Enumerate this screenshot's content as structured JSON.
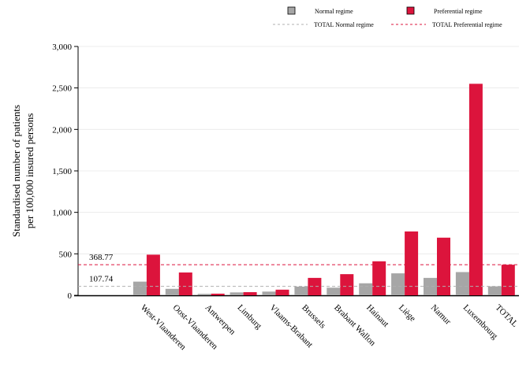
{
  "chart_data": {
    "type": "bar",
    "title": "",
    "xlabel": "",
    "ylabel_lines": [
      "Standardised number of patients",
      "per 100,000 insured persons"
    ],
    "categories": [
      "West-Vlaanderen",
      "Oost-Vlaanderen",
      "Antwerpen",
      "Limburg",
      "Vlaams-Brabant",
      "Brussels",
      "Brabant Wallon",
      "Hainaut",
      "Liège",
      "Namur",
      "Luxembourg",
      "TOTAL"
    ],
    "series": [
      {
        "name": "Normal regime",
        "color": "#a6a6a6",
        "values": [
          165,
          78,
          18,
          35,
          45,
          105,
          92,
          145,
          265,
          210,
          280,
          108
        ]
      },
      {
        "name": "Preferential regime",
        "color": "#dc143c",
        "values": [
          490,
          275,
          20,
          38,
          68,
          210,
          255,
          410,
          770,
          695,
          2550,
          369
        ]
      }
    ],
    "reference_lines": [
      {
        "name": "TOTAL Normal regime",
        "value": 107.74,
        "label": "107.74",
        "color": "#b0b0b0"
      },
      {
        "name": "TOTAL Preferential regime",
        "value": 368.77,
        "label": "368.77",
        "color": "#dc143c"
      }
    ],
    "ylim": [
      0,
      3000
    ],
    "yticks": [
      0,
      500,
      1000,
      1500,
      2000,
      2500,
      3000
    ],
    "ytick_labels": [
      "0",
      "500",
      "1,000",
      "1,500",
      "2,000",
      "2,500",
      "3,000"
    ],
    "grid": true,
    "legend_position": "top-right"
  }
}
